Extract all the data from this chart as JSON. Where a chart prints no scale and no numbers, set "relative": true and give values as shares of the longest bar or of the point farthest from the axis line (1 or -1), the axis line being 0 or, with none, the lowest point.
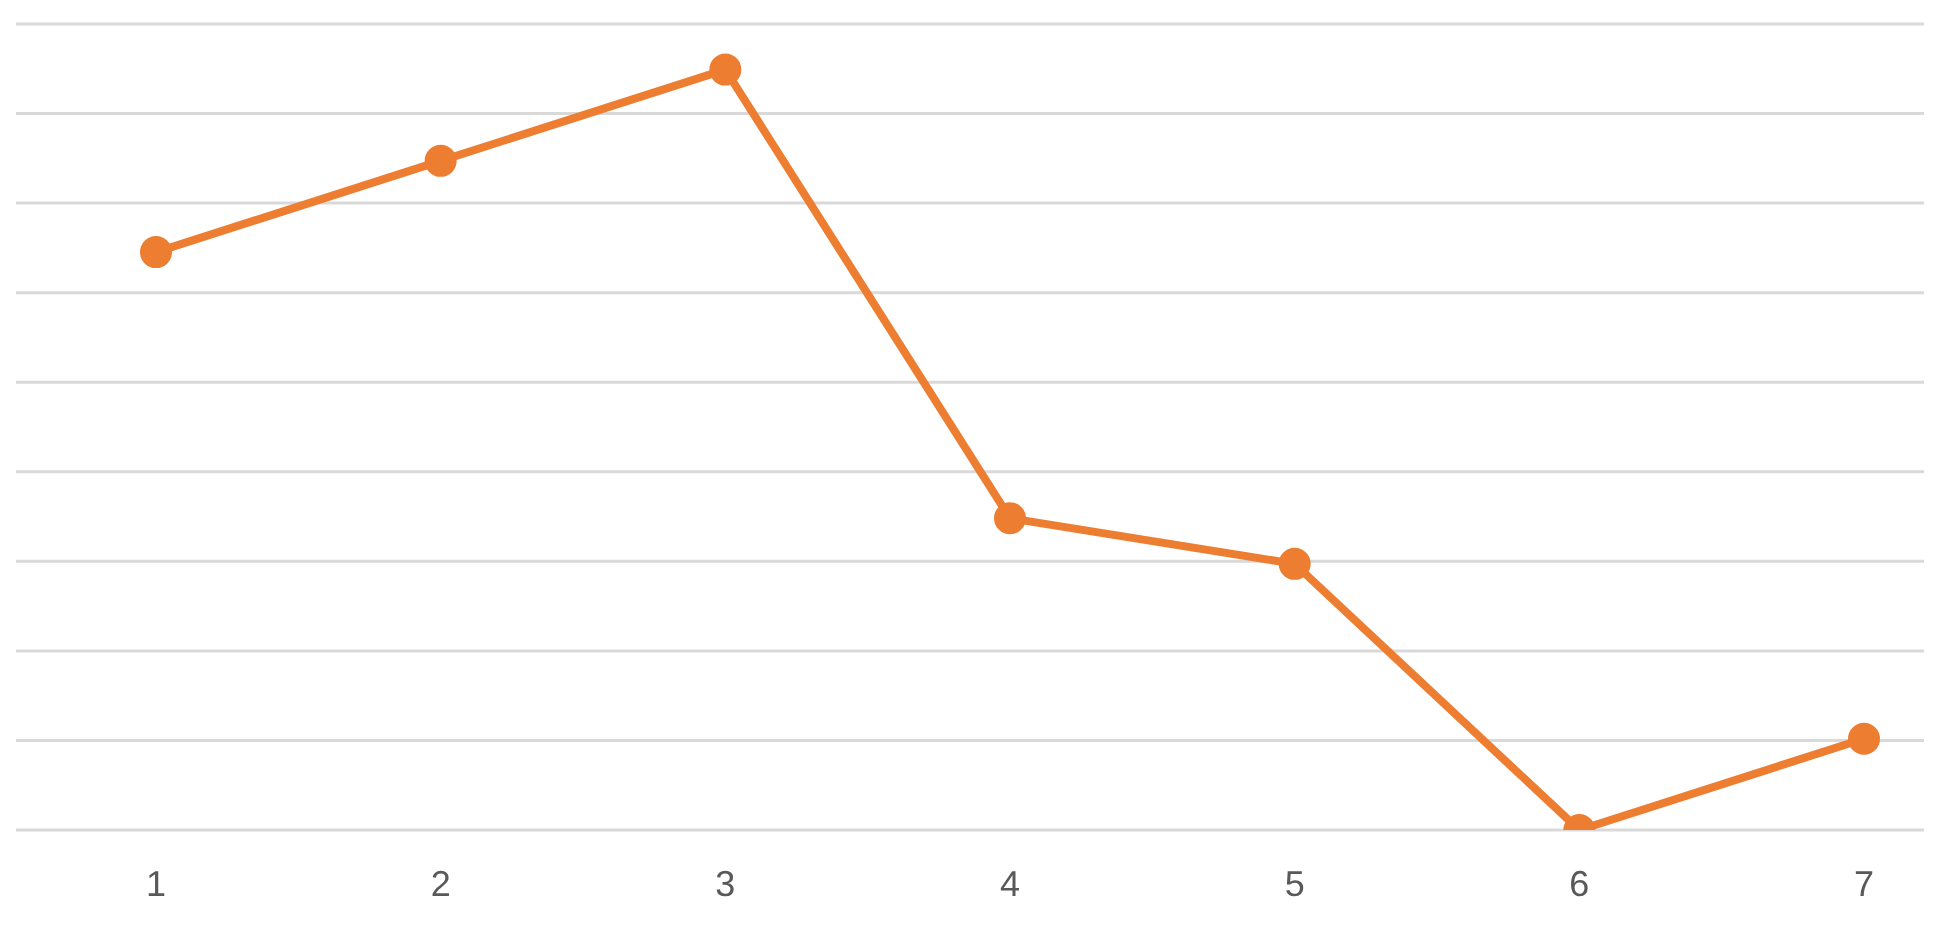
{
  "chart_data": {
    "type": "line",
    "relative": true,
    "categories": [
      "1",
      "2",
      "3",
      "4",
      "5",
      "6",
      "7"
    ],
    "series": [
      {
        "color": "#ed7d31",
        "values": [
          0.76,
          0.88,
          1,
          0.41,
          0.35,
          0,
          0.12
        ]
      }
    ],
    "grid": "y",
    "marker": "circle",
    "line_style": "solid",
    "legend": false
  }
}
